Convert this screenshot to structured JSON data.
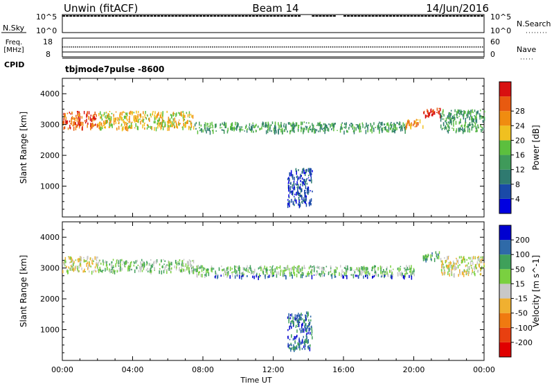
{
  "header": {
    "station": "Unwin (fitACF)",
    "beam": "Beam 14",
    "date": "14/Jun/2016"
  },
  "strips": {
    "nsky": {
      "label": "N.Sky",
      "ticks": [
        "10^5",
        "10^0"
      ]
    },
    "nsearch": {
      "label": "N.Search",
      "ticks": [
        "10^5",
        "10^0"
      ]
    },
    "freq": {
      "label_line1": "Freq.",
      "label_line2": "[MHz]",
      "ticks": [
        "18",
        "8"
      ]
    },
    "nave": {
      "label": "Nave",
      "ticks": [
        "60",
        "0"
      ]
    },
    "cpid": {
      "label": "CPID",
      "value": "tbjmode7pulse -8600"
    }
  },
  "colors": {
    "power": [
      "#0000e0",
      "#1a4aa8",
      "#2f7a70",
      "#3f9a5a",
      "#5cbf3e",
      "#f0c020",
      "#f08c10",
      "#e85a10",
      "#d81010"
    ],
    "velocity": [
      "#e00000",
      "#e84010",
      "#f07a10",
      "#f0b030",
      "#c8c8c8",
      "#7ad040",
      "#3fa05a",
      "#2f6aa8",
      "#0000d0"
    ]
  },
  "chart_data": [
    {
      "type": "heatmap",
      "title": "Power",
      "ylabel": "Slant Range [km]",
      "xlabel": "Time UT",
      "x_ticks": [
        "00:00",
        "04:00",
        "08:00",
        "12:00",
        "16:00",
        "20:00",
        "00:00"
      ],
      "y_ticks": [
        "1000",
        "2000",
        "3000",
        "4000"
      ],
      "ylim": [
        0,
        4500
      ],
      "colorbar": {
        "label": "Power [dB]",
        "ticks": [
          "4",
          "8",
          "12",
          "16",
          "20",
          "24",
          "28"
        ]
      },
      "regions": [
        {
          "t": [
            0.0,
            2.0
          ],
          "r": [
            2900,
            3450
          ],
          "level": 7
        },
        {
          "t": [
            2.0,
            7.5
          ],
          "r": [
            2900,
            3450
          ],
          "level": 5
        },
        {
          "t": [
            7.5,
            14.0
          ],
          "r": [
            2800,
            3100
          ],
          "level": 3
        },
        {
          "t": [
            14.0,
            19.5
          ],
          "r": [
            2800,
            3100
          ],
          "level": 3
        },
        {
          "t": [
            19.5,
            20.5
          ],
          "r": [
            2950,
            3200
          ],
          "level": 6
        },
        {
          "t": [
            20.5,
            21.5
          ],
          "r": [
            3300,
            3550
          ],
          "level": 8
        },
        {
          "t": [
            21.5,
            24.0
          ],
          "r": [
            2800,
            3500
          ],
          "level": 3
        },
        {
          "t": [
            12.8,
            14.2
          ],
          "r": [
            400,
            1600
          ],
          "level": 1
        }
      ]
    },
    {
      "type": "heatmap",
      "title": "Velocity",
      "ylabel": "Slant Range [km]",
      "xlabel": "Time UT",
      "x_ticks": [
        "00:00",
        "04:00",
        "08:00",
        "12:00",
        "16:00",
        "20:00",
        "00:00"
      ],
      "y_ticks": [
        "1000",
        "2000",
        "3000",
        "4000"
      ],
      "ylim": [
        0,
        4500
      ],
      "colorbar": {
        "label": "Velocity [m s^-1]",
        "ticks": [
          "200",
          "100",
          "50",
          "15",
          "-15",
          "-50",
          "-100",
          "-200"
        ]
      },
      "regions": [
        {
          "t": [
            0.0,
            2.0
          ],
          "r": [
            2900,
            3400
          ],
          "level": 4
        },
        {
          "t": [
            2.0,
            7.5
          ],
          "r": [
            2900,
            3300
          ],
          "level": 5
        },
        {
          "t": [
            7.5,
            20.0
          ],
          "r": [
            2800,
            3100
          ],
          "level": 5
        },
        {
          "t": [
            8.5,
            20.0
          ],
          "r": [
            2740,
            2790
          ],
          "level": 8
        },
        {
          "t": [
            20.5,
            21.5
          ],
          "r": [
            3300,
            3550
          ],
          "level": 6
        },
        {
          "t": [
            21.5,
            24.0
          ],
          "r": [
            2800,
            3400
          ],
          "level": 4
        },
        {
          "t": [
            12.8,
            14.2
          ],
          "r": [
            400,
            1600
          ],
          "level": 7
        }
      ]
    }
  ]
}
